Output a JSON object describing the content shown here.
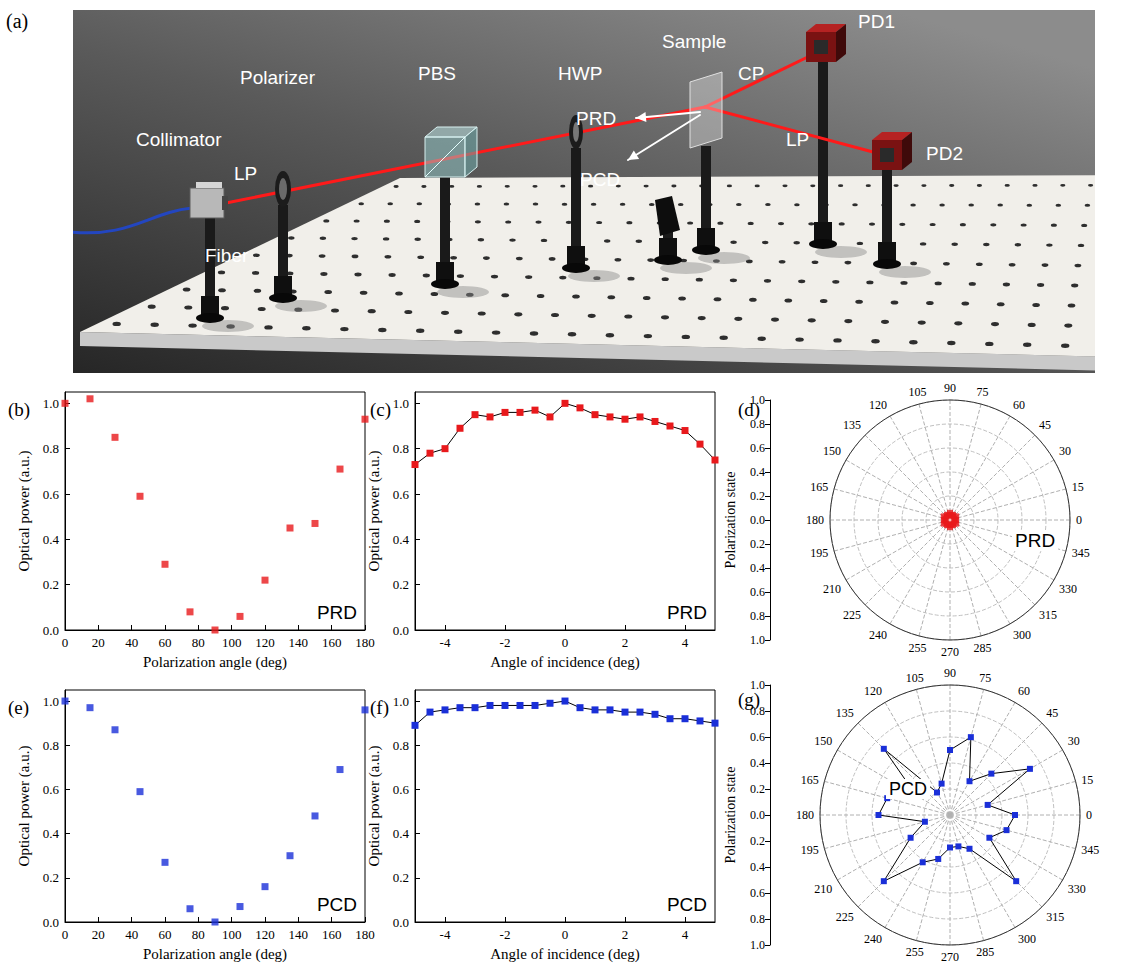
{
  "diagram": {
    "panel": "(a)",
    "labels": {
      "fiber": "Fiber",
      "collimator": "Collimator",
      "beam_in": "LP",
      "polarizer": "Polarizer",
      "pbs": "PBS",
      "hwp": "HWP",
      "sample": "Sample",
      "reflected": "PRD",
      "transmitted": "PCD",
      "beam_cp": "CP",
      "beam_lp": "LP",
      "pd1": "PD1",
      "pd2": "PD2"
    }
  },
  "chart_data": [
    {
      "panel": "(b)",
      "type": "scatter",
      "annotation": "PRD",
      "x_label": "Polarization angle (deg)",
      "y_label": "Optical power (a.u.)",
      "x": [
        0,
        15,
        30,
        45,
        60,
        75,
        90,
        105,
        120,
        135,
        150,
        165,
        180
      ],
      "values": [
        1.0,
        1.02,
        0.85,
        0.59,
        0.29,
        0.08,
        0.0,
        0.06,
        0.22,
        0.45,
        0.47,
        0.71,
        0.93
      ],
      "color": "#e8191c",
      "marker": "square",
      "xlim": [
        0,
        180
      ],
      "xticks": [
        0,
        20,
        40,
        60,
        80,
        100,
        120,
        140,
        160,
        180
      ],
      "ylim": [
        0,
        1.05
      ],
      "yticks": [
        {
          "value": 0,
          "label": "0.0"
        },
        0.2,
        0.4,
        0.6,
        0.8,
        {
          "value": 1,
          "label": "1.0"
        }
      ],
      "grid": false
    },
    {
      "panel": "(c)",
      "type": "line",
      "annotation": "PRD",
      "x_label": "Angle of incidence (deg)",
      "y_label": "Optical power (a.u.)",
      "x": [
        -5,
        -4.5,
        -4,
        -3.5,
        -3,
        -2.5,
        -2,
        -1.5,
        -1,
        -0.5,
        0,
        0.5,
        1,
        1.5,
        2,
        2.5,
        3,
        3.5,
        4,
        4.5,
        5
      ],
      "values": [
        0.73,
        0.78,
        0.8,
        0.89,
        0.95,
        0.94,
        0.96,
        0.96,
        0.97,
        0.94,
        1.0,
        0.98,
        0.95,
        0.94,
        0.93,
        0.94,
        0.92,
        0.9,
        0.88,
        0.82,
        0.75
      ],
      "color": "#e8191c",
      "marker": "square",
      "line_style": "solid",
      "xlim": [
        -5,
        5
      ],
      "xticks": [
        -4,
        -2,
        0,
        2,
        4
      ],
      "ylim": [
        0,
        1.05
      ],
      "yticks": [
        {
          "value": 0,
          "label": "0.0"
        },
        0.2,
        0.4,
        0.6,
        0.8,
        {
          "value": 1,
          "label": "1.0"
        }
      ],
      "grid": false
    },
    {
      "panel": "(d)",
      "type": "polar",
      "annotation": "PRD",
      "r_label": "Polarization state",
      "theta": [
        0,
        15,
        30,
        45,
        60,
        75,
        90,
        105,
        120,
        135,
        150,
        165,
        180,
        195,
        210,
        225,
        240,
        255,
        270,
        285,
        300,
        315,
        330,
        345
      ],
      "r": [
        0.05,
        0.04,
        0.06,
        0.04,
        0.05,
        0.04,
        0.06,
        0.04,
        0.05,
        0.04,
        0.06,
        0.04,
        0.05,
        0.04,
        0.06,
        0.04,
        0.05,
        0.04,
        0.06,
        0.04,
        0.05,
        0.04,
        0.06,
        0.04
      ],
      "color": "#e8191c",
      "marker": "square",
      "line_style": "none",
      "thetalim": [
        0,
        360
      ],
      "thetaticks": [
        0,
        15,
        30,
        45,
        60,
        75,
        90,
        105,
        120,
        135,
        150,
        165,
        180,
        195,
        210,
        225,
        240,
        255,
        270,
        285,
        300,
        315,
        330,
        345
      ],
      "rlim": [
        0,
        1
      ],
      "rticks": [
        {
          "value": 0,
          "label": "0.0"
        },
        0.2,
        0.4,
        0.6,
        0.8,
        {
          "value": 1,
          "label": "1.0"
        }
      ],
      "grid": true
    },
    {
      "panel": "(e)",
      "type": "scatter",
      "annotation": "PCD",
      "x_label": "Polarization angle (deg)",
      "y_label": "Optical power (a.u.)",
      "x": [
        0,
        15,
        30,
        45,
        60,
        75,
        90,
        105,
        120,
        135,
        150,
        165,
        180
      ],
      "values": [
        1.0,
        0.97,
        0.87,
        0.59,
        0.27,
        0.06,
        0.0,
        0.07,
        0.16,
        0.3,
        0.48,
        0.69,
        0.96
      ],
      "color": "#1a2fd8",
      "marker": "square",
      "xlim": [
        0,
        180
      ],
      "xticks": [
        0,
        20,
        40,
        60,
        80,
        100,
        120,
        140,
        160,
        180
      ],
      "ylim": [
        0,
        1.05
      ],
      "yticks": [
        {
          "value": 0,
          "label": "0.0"
        },
        0.2,
        0.4,
        0.6,
        0.8,
        {
          "value": 1,
          "label": "1.0"
        }
      ],
      "grid": false
    },
    {
      "panel": "(f)",
      "type": "line",
      "annotation": "PCD",
      "x_label": "Angle of incidence (deg)",
      "y_label": "Optical power (a.u.)",
      "x": [
        -5,
        -4.5,
        -4,
        -3.5,
        -3,
        -2.5,
        -2,
        -1.5,
        -1,
        -0.5,
        0,
        0.5,
        1,
        1.5,
        2,
        2.5,
        3,
        3.5,
        4,
        4.5,
        5
      ],
      "values": [
        0.89,
        0.95,
        0.96,
        0.97,
        0.97,
        0.98,
        0.98,
        0.98,
        0.98,
        0.99,
        1.0,
        0.97,
        0.96,
        0.96,
        0.95,
        0.95,
        0.94,
        0.92,
        0.92,
        0.91,
        0.9
      ],
      "color": "#1a2fd8",
      "marker": "square",
      "line_style": "solid",
      "xlim": [
        -5,
        5
      ],
      "xticks": [
        -4,
        -2,
        0,
        2,
        4
      ],
      "ylim": [
        0,
        1.05
      ],
      "yticks": [
        {
          "value": 0,
          "label": "0.0"
        },
        0.2,
        0.4,
        0.6,
        0.8,
        {
          "value": 1,
          "label": "1.0"
        }
      ],
      "grid": false
    },
    {
      "panel": "(g)",
      "type": "polar",
      "annotation": "PCD",
      "r_label": "Polarization state",
      "theta": [
        0,
        15,
        30,
        45,
        60,
        75,
        90,
        105,
        120,
        135,
        150,
        165,
        180,
        195,
        210,
        225,
        240,
        255,
        270,
        285,
        300,
        315,
        330,
        345
      ],
      "r": [
        0.5,
        0.3,
        0.71,
        0.45,
        0.3,
        0.62,
        0.5,
        0.25,
        0.2,
        0.72,
        0.3,
        0.5,
        0.55,
        0.2,
        0.35,
        0.72,
        0.42,
        0.35,
        0.25,
        0.25,
        0.3,
        0.72,
        0.35,
        0.45
      ],
      "color": "#1a2fd8",
      "marker": "square",
      "line_style": "solid",
      "thetalim": [
        0,
        360
      ],
      "thetaticks": [
        0,
        15,
        30,
        45,
        60,
        75,
        90,
        105,
        120,
        135,
        150,
        165,
        180,
        195,
        210,
        225,
        240,
        255,
        270,
        285,
        300,
        315,
        330,
        345
      ],
      "rlim": [
        0,
        1
      ],
      "rticks": [
        {
          "value": 0,
          "label": "0.0"
        },
        0.2,
        0.4,
        0.6,
        0.8,
        {
          "value": 1,
          "label": "1.0"
        }
      ],
      "grid": true
    }
  ]
}
